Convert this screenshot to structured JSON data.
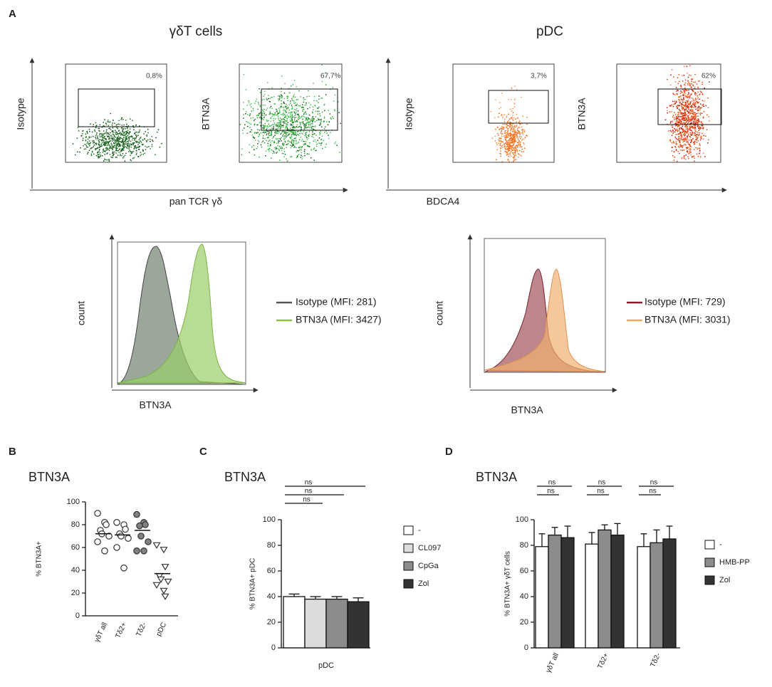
{
  "panel_a": {
    "label": "A",
    "groups": [
      {
        "title": "γδT cells",
        "x_label": "pan TCR γδ",
        "plots": [
          {
            "y_label": "Isotype",
            "gate": "0,8%"
          },
          {
            "y_label": "BTN3A",
            "gate": "67,7%"
          }
        ],
        "hist": {
          "y_label": "count",
          "x_label": "BTN3A",
          "legend": [
            "Isotype (MFI: 281)",
            "BTN3A (MFI: 3427)"
          ],
          "colors": [
            "#555555",
            "#8bc34a"
          ]
        }
      },
      {
        "title": "pDC",
        "x_label": "BDCA4",
        "plots": [
          {
            "y_label": "Isotype",
            "gate": "3,7%"
          },
          {
            "y_label": "BTN3A",
            "gate": "62%"
          }
        ],
        "hist": {
          "y_label": "count",
          "x_label": "BTN3A",
          "legend": [
            "Isotype (MFI: 729)",
            "BTN3A (MFI: 3031)"
          ],
          "colors": [
            "#8b1a2b",
            "#f0a860"
          ]
        }
      }
    ]
  },
  "chart_data": [
    {
      "type": "strip",
      "panel": "B",
      "title": "BTN3A",
      "y_label": "% BTN3A+",
      "categories": [
        "γδT all",
        "Tδ2+",
        "Tδ2-",
        "pDC"
      ],
      "values": [
        [
          90,
          82,
          80,
          75,
          72,
          70,
          65,
          57
        ],
        [
          82,
          80,
          76,
          72,
          70,
          68,
          60,
          42
        ],
        [
          89,
          82,
          80,
          79,
          70,
          65,
          57,
          57
        ],
        [
          62,
          58,
          43,
          35,
          32,
          30,
          27,
          22,
          17
        ]
      ],
      "means": [
        72,
        71,
        75,
        37
      ],
      "markers": [
        "open-circle",
        "open-circle",
        "filled-circle",
        "open-triangle"
      ],
      "marker_fill": "#808080",
      "ylim": [
        0,
        100
      ],
      "yticks": [
        0,
        20,
        40,
        60,
        80,
        100
      ]
    },
    {
      "type": "bar",
      "panel": "C",
      "title": "BTN3A",
      "y_label": "% BTN3A+ pDC",
      "categories": [
        "pDC"
      ],
      "series": [
        {
          "name": "-",
          "color": "#ffffff",
          "values": [
            40
          ],
          "errors": [
            2
          ]
        },
        {
          "name": "CL097",
          "color": "#dcdcdc",
          "values": [
            38
          ],
          "errors": [
            2
          ]
        },
        {
          "name": "CpGa",
          "color": "#8c8c8c",
          "values": [
            38
          ],
          "errors": [
            2
          ]
        },
        {
          "name": "Zol",
          "color": "#333333",
          "values": [
            36
          ],
          "errors": [
            3
          ]
        }
      ],
      "significance_labels": [
        [
          "ns",
          "ns",
          "ns"
        ]
      ],
      "ylim": [
        0,
        100
      ],
      "yticks": [
        0,
        20,
        40,
        60,
        80,
        100
      ]
    },
    {
      "type": "bar",
      "panel": "D",
      "title": "BTN3A",
      "y_label": "% BTN3A+ γδT cells",
      "categories": [
        "γδT all",
        "Tδ2+",
        "Tδ2-"
      ],
      "series": [
        {
          "name": "-",
          "color": "#ffffff",
          "values": [
            79,
            81,
            79
          ],
          "errors": [
            10,
            9,
            10
          ]
        },
        {
          "name": "HMB-PP",
          "color": "#8c8c8c",
          "values": [
            88,
            92,
            82
          ],
          "errors": [
            6,
            4,
            10
          ]
        },
        {
          "name": "Zol",
          "color": "#333333",
          "values": [
            86,
            88,
            85
          ],
          "errors": [
            9,
            9,
            10
          ]
        }
      ],
      "significance_labels": [
        [
          "ns",
          "ns"
        ],
        [
          "ns",
          "ns"
        ],
        [
          "ns",
          "ns"
        ]
      ],
      "ylim": [
        0,
        100
      ],
      "yticks": [
        0,
        20,
        40,
        60,
        80,
        100
      ]
    }
  ]
}
